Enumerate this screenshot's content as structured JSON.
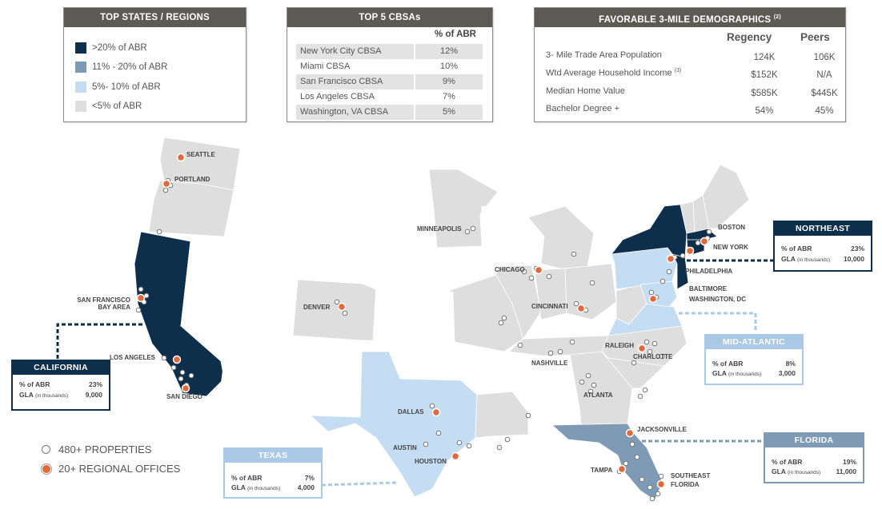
{
  "colors": {
    "tier1": "#0e2f4b",
    "tier2": "#7f9ab5",
    "tier3": "#c5ddf2",
    "tier4": "#dedede",
    "none": "#ffffff",
    "panel_header": "#5d5a56",
    "office": "#e2673a"
  },
  "top_states": {
    "title": "TOP STATES / REGIONS",
    "items": [
      {
        "label": ">20% of ABR",
        "color": "#0e2f4b"
      },
      {
        "label": "11% - 20% of ABR",
        "color": "#7f9ab5"
      },
      {
        "label": "5%- 10% of ABR",
        "color": "#c5ddf2"
      },
      {
        "label": "<5% of ABR",
        "color": "#dedede"
      }
    ]
  },
  "top_cbsas": {
    "title": "TOP 5 CBSAs",
    "column_header": "% of ABR",
    "rows": [
      {
        "name": "New York City CBSA",
        "pct": "12%"
      },
      {
        "name": "Miami CBSA",
        "pct": "10%"
      },
      {
        "name": "San Francisco CBSA",
        "pct": "9%"
      },
      {
        "name": "Los Angeles CBSA",
        "pct": "7%"
      },
      {
        "name": "Washington, VA CBSA",
        "pct": "5%"
      }
    ]
  },
  "demographics": {
    "title": "FAVORABLE 3-MILE DEMOGRAPHICS",
    "title_note": "(2)",
    "col1": "Regency",
    "col2": "Peers",
    "rows": [
      {
        "label": "3- Mile Trade Area Population",
        "note": "",
        "v1": "124K",
        "v2": "106K"
      },
      {
        "label": "Wtd Average Household Income",
        "note": "(3)",
        "v1": "$152K",
        "v2": "N/A"
      },
      {
        "label": "Median Home Value",
        "note": "",
        "v1": "$585K",
        "v2": "$445K"
      },
      {
        "label": "Bachelor Degree +",
        "note": "",
        "v1": "54%",
        "v2": "45%"
      }
    ]
  },
  "regions": [
    {
      "key": "california",
      "title": "CALIFORNIA",
      "abr_label": "% of ABR",
      "abr": "23%",
      "gla_label": "GLA",
      "gla_note": "(in thousands)",
      "gla": "9,000"
    },
    {
      "key": "northeast",
      "title": "NORTHEAST",
      "abr_label": "% of ABR",
      "abr": "23%",
      "gla_label": "GLA",
      "gla_note": "(in thousands)",
      "gla": "10,000"
    },
    {
      "key": "midatlantic",
      "title": "MID-ATLANTIC",
      "abr_label": "% of ABR",
      "abr": "8%",
      "gla_label": "GLA",
      "gla_note": "(in thousands)",
      "gla": "3,000"
    },
    {
      "key": "texas",
      "title": "TEXAS",
      "abr_label": "% of ABR",
      "abr": "7%",
      "gla_label": "GLA",
      "gla_note": "(in thousands)",
      "gla": "4,000"
    },
    {
      "key": "florida",
      "title": "FLORIDA",
      "abr_label": "% of ABR",
      "abr": "19%",
      "gla_label": "GLA",
      "gla_note": "(in thousands)",
      "gla": "11,000"
    }
  ],
  "cities": [
    "SEATTLE",
    "PORTLAND",
    "SAN FRANCISCO",
    "BAY AREA",
    "LOS ANGELES",
    "SAN DIEGO",
    "DENVER",
    "MINNEAPOLIS",
    "CHICAGO",
    "CINCINNATI",
    "DALLAS",
    "AUSTIN",
    "HOUSTON",
    "NASHVILLE",
    "ATLANTA",
    "RALEIGH",
    "CHARLOTTE",
    "JACKSONVILLE",
    "TAMPA",
    "SOUTHEAST",
    "FLORIDA",
    "BOSTON",
    "NEW YORK",
    "PHILADELPHIA",
    "BALTIMORE",
    "WASHINGTON, DC"
  ],
  "map_legend": {
    "properties": "480+ PROPERTIES",
    "offices": "20+ REGIONAL OFFICES"
  }
}
